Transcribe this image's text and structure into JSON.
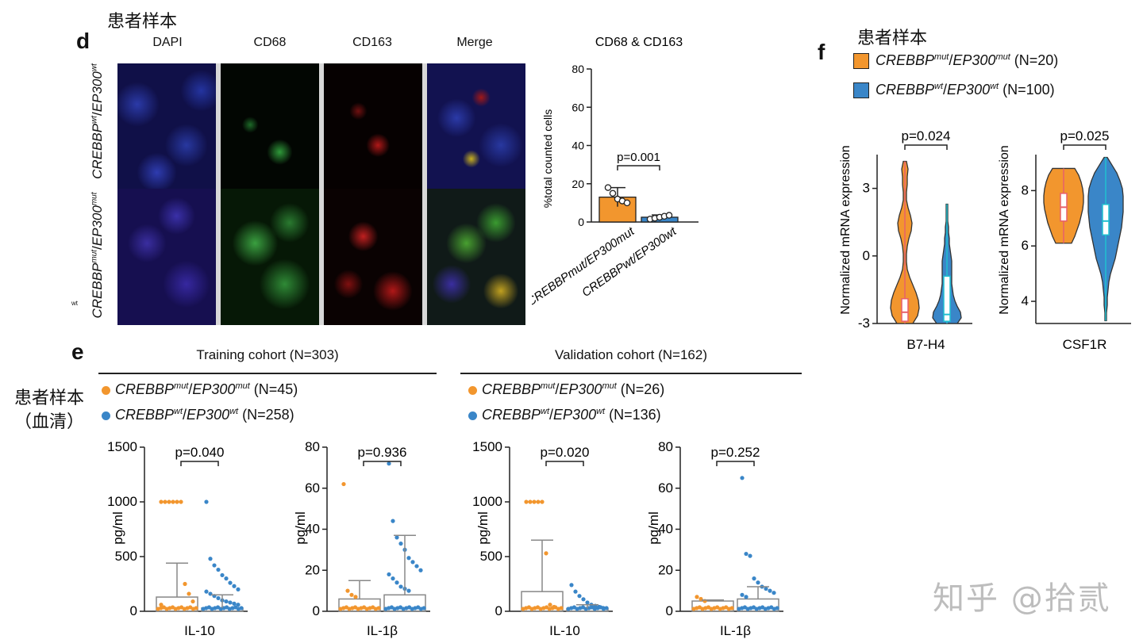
{
  "annotations": {
    "top_left": "患者样本",
    "top_right": "患者样本",
    "left_serum_line1": "患者样本",
    "left_serum_line2": "（血清）",
    "watermark": "知乎 @拾贰"
  },
  "panel_d": {
    "label": "d",
    "columns": [
      "DAPI",
      "CD68",
      "CD163",
      "Merge"
    ],
    "row_labels": [
      {
        "italic": "CREBBP",
        "sup1": "wt",
        "mid": "/",
        "italic2": "EP300",
        "sup2": "wt"
      },
      {
        "italic": "CREBBP",
        "sup1": "mut",
        "mid": "/",
        "italic2": "EP300",
        "sup2": "mut"
      }
    ],
    "stray_label": "wt",
    "chart_title": "CD68 & CD163"
  },
  "panel_e": {
    "label": "e",
    "training_title": "Training cohort (N=303)",
    "validation_title": "Validation cohort (N=162)",
    "training_legend": [
      {
        "gene1": "CREBBP",
        "sup1": "mut",
        "gene2": "EP300",
        "sup2": "mut",
        "n": " (N=45)",
        "color": "#F2962E"
      },
      {
        "gene1": "CREBBP",
        "sup1": "wt",
        "gene2": "EP300",
        "sup2": "wt",
        "n": " (N=258)",
        "color": "#3A86C8"
      }
    ],
    "validation_legend": [
      {
        "gene1": "CREBBP",
        "sup1": "mut",
        "gene2": "EP300",
        "sup2": "mut",
        "n": " (N=26)",
        "color": "#F2962E"
      },
      {
        "gene1": "CREBBP",
        "sup1": "wt",
        "gene2": "EP300",
        "sup2": "wt",
        "n": " (N=136)",
        "color": "#3A86C8"
      }
    ]
  },
  "panel_f": {
    "label": "f",
    "legend": [
      {
        "gene1": "CREBBP",
        "sup1": "mut",
        "gene2": "EP300",
        "sup2": "mut",
        "n": " (N=20)",
        "color": "#F2962E"
      },
      {
        "gene1": "CREBBP",
        "sup1": "wt",
        "gene2": "EP300",
        "sup2": "wt",
        "n": " (N=100)",
        "color": "#3A86C8"
      }
    ]
  },
  "chart_data": [
    {
      "id": "d_bar",
      "type": "bar",
      "title": "CD68 & CD163",
      "ylabel": "%total counted cells",
      "ylim": [
        0,
        80
      ],
      "yticks": [
        0,
        20,
        40,
        60,
        80
      ],
      "categories": [
        "CREBBPmut/EP300mut",
        "CREBBPwt/EP300wt"
      ],
      "values": [
        13,
        2.5
      ],
      "errors": [
        5,
        1.2
      ],
      "points": [
        [
          18,
          15,
          12,
          11,
          10
        ],
        [
          1.5,
          2,
          2.5,
          3,
          3.5
        ]
      ],
      "colors": [
        "#F2962E",
        "#3A86C8"
      ],
      "pvalue": "p=0.001"
    },
    {
      "id": "e_train_il10",
      "type": "bar",
      "xlabel": "IL-10",
      "ylabel": "pg/ml",
      "ylim": [
        0,
        1500
      ],
      "yticks": [
        0,
        500,
        1000,
        1500
      ],
      "values": [
        130,
        30
      ],
      "errors": [
        310,
        120
      ],
      "pvalue": "p=0.040",
      "colors": [
        "#F2962E",
        "#3A86C8"
      ],
      "outliers": [
        [
          1000,
          1000,
          1000,
          1000,
          1000,
          1000,
          250,
          160,
          90,
          60
        ],
        [
          1000,
          480,
          420,
          380,
          330,
          300,
          260,
          230,
          200,
          180,
          160,
          140,
          120,
          100,
          90,
          80,
          70,
          60
        ]
      ]
    },
    {
      "id": "e_train_il1b",
      "type": "bar",
      "xlabel": "IL-1β",
      "ylabel": "pg/ml",
      "ylim": [
        0,
        80
      ],
      "yticks": [
        0,
        20,
        40,
        60,
        80
      ],
      "values": [
        6,
        8
      ],
      "errors": [
        9,
        29
      ],
      "pvalue": "p=0.936",
      "colors": [
        "#F2962E",
        "#3A86C8"
      ],
      "outliers": [
        [
          62,
          10,
          8,
          7
        ],
        [
          72,
          44,
          36,
          33,
          30,
          26,
          24,
          22,
          20,
          18,
          16,
          14,
          12,
          11,
          10
        ]
      ]
    },
    {
      "id": "e_val_il10",
      "type": "bar",
      "xlabel": "IL-10",
      "ylabel": "pg/ml",
      "ylim": [
        0,
        1500
      ],
      "yticks": [
        0,
        500,
        1000,
        1500
      ],
      "values": [
        180,
        25
      ],
      "errors": [
        470,
        35
      ],
      "pvalue": "p=0.020",
      "colors": [
        "#F2962E",
        "#3A86C8"
      ],
      "outliers": [
        [
          1000,
          1000,
          1000,
          1000,
          1000,
          530,
          60,
          40
        ],
        [
          240,
          180,
          140,
          110,
          80,
          60,
          50,
          40,
          30
        ]
      ]
    },
    {
      "id": "e_val_il1b",
      "type": "bar",
      "xlabel": "IL-1β",
      "ylabel": "pg/ml",
      "ylim": [
        0,
        80
      ],
      "yticks": [
        0,
        20,
        40,
        60,
        80
      ],
      "values": [
        5,
        6
      ],
      "errors": [
        0.5,
        6
      ],
      "pvalue": "p=0.252",
      "colors": [
        "#F2962E",
        "#3A86C8"
      ],
      "outliers": [
        [
          7,
          6,
          5
        ],
        [
          65,
          28,
          27,
          16,
          14,
          12,
          11,
          10,
          9,
          8,
          7
        ]
      ]
    },
    {
      "id": "f_b7h4",
      "type": "violin",
      "xlabel": "B7-H4",
      "ylabel": "Normalized mRNA expression",
      "ylim": [
        -3,
        4.5
      ],
      "yticks": [
        -3,
        0,
        3
      ],
      "pvalue": "p=0.024",
      "colors": [
        "#F2962E",
        "#3A86C8"
      ],
      "series": [
        {
          "name": "CREBBPmut/EP300mut",
          "min": -3,
          "max": 4.2,
          "q1": -2.9,
          "median": -2.5,
          "q3": -1.9
        },
        {
          "name": "CREBBPwt/EP300wt",
          "min": -3,
          "max": 2.3,
          "q1": -2.9,
          "median": -2.6,
          "q3": -0.9
        }
      ]
    },
    {
      "id": "f_csf1r",
      "type": "violin",
      "xlabel": "CSF1R",
      "ylabel": "Normalized mRNA expression",
      "ylim": [
        3.2,
        9.3
      ],
      "yticks": [
        4,
        6,
        8
      ],
      "pvalue": "p=0.025",
      "colors": [
        "#F2962E",
        "#3A86C8"
      ],
      "series": [
        {
          "name": "CREBBPmut/EP300mut",
          "min": 6.1,
          "max": 8.8,
          "q1": 6.9,
          "median": 7.4,
          "q3": 7.9
        },
        {
          "name": "CREBBPwt/EP300wt",
          "min": 3.3,
          "max": 9.2,
          "q1": 6.4,
          "median": 6.9,
          "q3": 7.5
        }
      ]
    }
  ]
}
